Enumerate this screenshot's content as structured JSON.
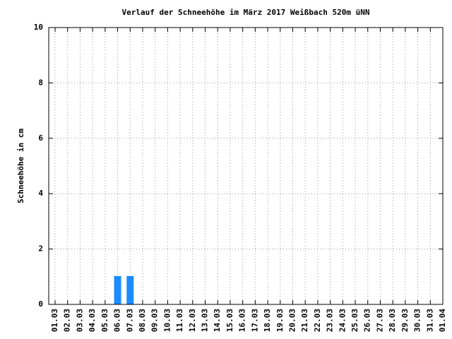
{
  "chart_data": {
    "type": "bar",
    "title": "Verlauf der Schneehöhe im März 2017 Weißbach 520m üNN",
    "y_label": "Schneehöhe in cm",
    "categories": [
      "01.03",
      "02.03",
      "03.03",
      "04.03",
      "05.03",
      "06.03",
      "07.03",
      "08.03",
      "09.03",
      "10.03",
      "11.03",
      "12.03",
      "13.03",
      "14.03",
      "15.03",
      "16.03",
      "17.03",
      "18.03",
      "19.03",
      "20.03",
      "21.03",
      "22.03",
      "23.03",
      "24.03",
      "25.03",
      "26.03",
      "27.03",
      "28.03",
      "29.03",
      "30.03",
      "31.03",
      "01.04"
    ],
    "values": [
      0,
      0,
      0,
      0,
      0,
      1,
      1,
      0,
      0,
      0,
      0,
      0,
      0,
      0,
      0,
      0,
      0,
      0,
      0,
      0,
      0,
      0,
      0,
      0,
      0,
      0,
      0,
      0,
      0,
      0,
      0,
      0
    ],
    "color": "#1a8cff",
    "ylim": [
      0,
      10
    ],
    "yticks": [
      0,
      2,
      4,
      6,
      8,
      10
    ],
    "grid": true
  }
}
